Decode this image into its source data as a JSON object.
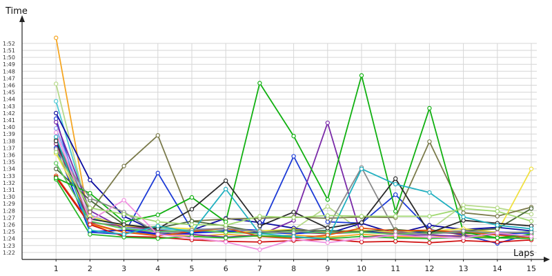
{
  "chart_data": {
    "type": "line",
    "title": "",
    "xlabel": "Laps",
    "ylabel": "Time",
    "x": [
      1,
      2,
      3,
      4,
      5,
      6,
      7,
      8,
      9,
      10,
      11,
      12,
      13,
      14,
      15
    ],
    "xlim": [
      0,
      15.4
    ],
    "ylim_seconds": [
      81,
      114
    ],
    "ytick_seconds": [
      82,
      83,
      84,
      85,
      86,
      87,
      88,
      89,
      90,
      91,
      92,
      93,
      94,
      95,
      96,
      97,
      98,
      99,
      100,
      101,
      102,
      103,
      104,
      105,
      106,
      107,
      108,
      109,
      110,
      111,
      112
    ],
    "ytick_labels": [
      "1:22",
      "1:23",
      "1:24",
      "1:25",
      "1:26",
      "1:27",
      "1:28",
      "1:29",
      "1:30",
      "1:31",
      "1:32",
      "1:33",
      "1:34",
      "1:35",
      "1:36",
      "1:37",
      "1:38",
      "1:39",
      "1:40",
      "1:41",
      "1:42",
      "1:43",
      "1:44",
      "1:45",
      "1:46",
      "1:47",
      "1:48",
      "1:49",
      "1:50",
      "1:51",
      "1:52"
    ],
    "grid": true,
    "legend": false,
    "series": [
      {
        "color": "#f5a623",
        "values": [
          112.8,
          86.0,
          84.9,
          84.6,
          84.3,
          84.6,
          84.3,
          84.5,
          84.2,
          84.6,
          84.3,
          84.2,
          84.5,
          84.1,
          84.4
        ]
      },
      {
        "color": "#b6d98a",
        "values": [
          106.2,
          86.5,
          85.5,
          85.8,
          85.0,
          85.2,
          85.1,
          85.3,
          88.6,
          85.1,
          85.0,
          85.2,
          88.8,
          88.4,
          87.5
        ]
      },
      {
        "color": "#4cc9d6",
        "values": [
          103.7,
          87.0,
          85.7,
          85.4,
          85.2,
          84.9,
          84.7,
          84.9,
          85.2,
          85.0,
          84.8,
          84.7,
          84.9,
          84.6,
          84.8
        ]
      },
      {
        "color": "#0a0aa0",
        "values": [
          102.0,
          92.4,
          87.2,
          84.9,
          85.2,
          86.9,
          86.3,
          85.5,
          84.7,
          86.2,
          84.7,
          85.9,
          85.3,
          85.6,
          85.1
        ]
      },
      {
        "color": "#1c3ad6",
        "values": [
          101.2,
          84.9,
          84.6,
          93.4,
          85.3,
          85.4,
          85.2,
          95.8,
          86.4,
          86.2,
          90.3,
          85.3,
          84.5,
          83.3,
          84.7
        ]
      },
      {
        "color": "#7a2aa8",
        "values": [
          100.7,
          88.0,
          85.4,
          84.7,
          84.6,
          84.2,
          84.5,
          86.6,
          100.6,
          84.2,
          84.5,
          84.5,
          84.3,
          84.6,
          84.3
        ]
      },
      {
        "color": "#8aa0f0",
        "values": [
          99.8,
          87.4,
          85.6,
          85.0,
          84.8,
          84.9,
          85.2,
          84.7,
          85.0,
          85.2,
          84.9,
          85.1,
          84.8,
          85.0,
          84.7
        ]
      },
      {
        "color": "#7a7a4a",
        "values": [
          98.2,
          87.8,
          94.4,
          98.8,
          86.5,
          86.8,
          86.9,
          87.1,
          86.9,
          87.1,
          87.0,
          97.9,
          87.7,
          87.2,
          88.5
        ]
      },
      {
        "color": "#8a2a6a",
        "values": [
          97.6,
          86.3,
          85.8,
          85.2,
          84.9,
          85.0,
          84.8,
          84.9,
          84.7,
          84.9,
          84.8,
          84.9,
          84.7,
          84.8,
          84.9
        ]
      },
      {
        "color": "#0020e0",
        "values": [
          97.0,
          85.0,
          85.2,
          84.6,
          84.8,
          85.1,
          84.9,
          84.7,
          85.0,
          84.9,
          85.0,
          84.8,
          84.9,
          84.7,
          84.8
        ]
      },
      {
        "color": "#f0e040",
        "values": [
          96.2,
          87.2,
          85.8,
          85.6,
          85.4,
          84.8,
          85.1,
          85.3,
          85.0,
          85.2,
          84.9,
          85.1,
          85.4,
          84.9,
          94.0
        ]
      },
      {
        "color": "#4a6a3a",
        "values": [
          94.0,
          89.5,
          86.0,
          85.5,
          86.5,
          85.8,
          84.9,
          85.2,
          85.1,
          85.0,
          85.3,
          84.9,
          85.1,
          85.4,
          88.3
        ]
      },
      {
        "color": "#5cc85c",
        "values": [
          94.8,
          86.5,
          85.4,
          85.0,
          85.2,
          84.9,
          84.7,
          85.0,
          84.8,
          84.9,
          84.6,
          84.8,
          84.9,
          84.7,
          85.0
        ]
      },
      {
        "color": "#e05010",
        "values": [
          93.0,
          86.2,
          84.9,
          84.4,
          85.0,
          85.5,
          84.3,
          84.0,
          84.5,
          85.5,
          85.1,
          85.2,
          84.9,
          84.5,
          84.1
        ]
      },
      {
        "color": "#d01010",
        "values": [
          92.8,
          86.0,
          84.3,
          84.2,
          83.8,
          83.6,
          83.5,
          83.7,
          83.9,
          83.5,
          83.6,
          83.4,
          83.7,
          83.5,
          83.8
        ]
      },
      {
        "color": "#2ab82a",
        "values": [
          92.5,
          84.6,
          84.2,
          84.0,
          84.3,
          84.1,
          84.4,
          84.2,
          84.0,
          84.3,
          84.1,
          84.0,
          84.2,
          84.1,
          84.0
        ]
      },
      {
        "color": "#10b010",
        "values": [
          92.7,
          90.5,
          86.4,
          87.4,
          89.9,
          86.4,
          106.3,
          98.7,
          89.6,
          107.4,
          87.9,
          102.7,
          84.9,
          84.1,
          84.6
        ]
      },
      {
        "color": "#8a8a8a",
        "values": [
          96.8,
          89.8,
          87.8,
          84.7,
          85.2,
          85.5,
          85.0,
          84.8,
          85.6,
          94.2,
          85.0,
          84.6,
          85.1,
          84.8,
          84.9
        ]
      },
      {
        "color": "#2a2a2a",
        "values": [
          98.0,
          86.8,
          86.0,
          85.4,
          88.2,
          92.3,
          85.8,
          87.8,
          85.5,
          86.3,
          92.6,
          84.8,
          86.6,
          86.2,
          85.8
        ]
      },
      {
        "color": "#20b0c0",
        "values": [
          98.6,
          85.2,
          84.6,
          85.8,
          84.9,
          91.1,
          84.7,
          84.3,
          83.9,
          94.0,
          91.8,
          90.6,
          87.1,
          85.9,
          85.4
        ]
      },
      {
        "color": "#f090e0",
        "values": [
          99.2,
          86.6,
          89.5,
          84.6,
          84.1,
          83.5,
          82.4,
          83.9,
          83.4,
          84.0,
          84.5,
          84.2,
          84.1,
          84.8,
          84.3
        ]
      },
      {
        "color": "#a0d870",
        "values": [
          96.4,
          88.4,
          87.5,
          86.4,
          86.0,
          85.9,
          87.2,
          87.0,
          87.3,
          87.2,
          87.2,
          87.2,
          88.3,
          87.9,
          86.5
        ]
      }
    ]
  }
}
